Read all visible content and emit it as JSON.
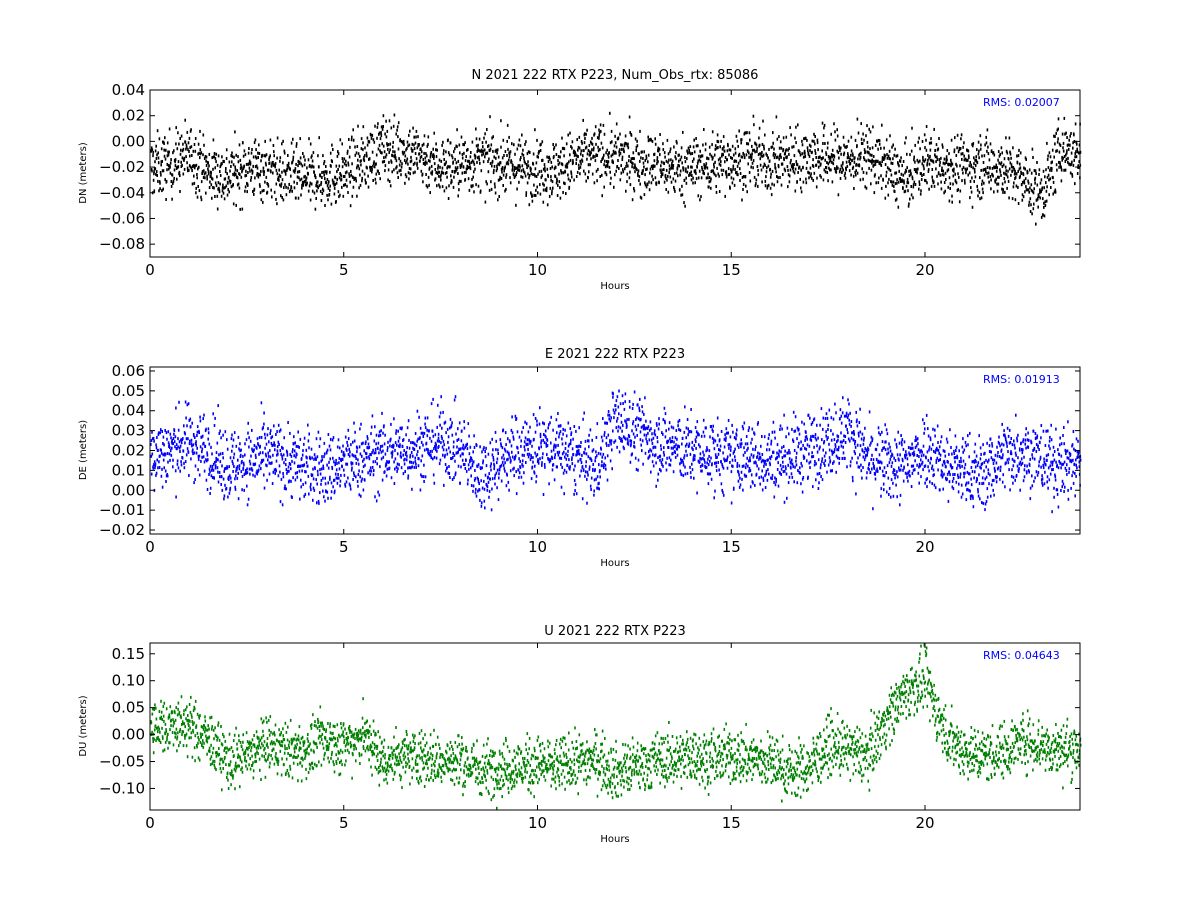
{
  "chart_data": [
    {
      "type": "scatter",
      "title": "N 2021 222 RTX  P223, Num_Obs_rtx: 85086",
      "xlabel": "Hours",
      "ylabel": "DN (meters)",
      "xlim": [
        0,
        24
      ],
      "ylim": [
        -0.09,
        0.04
      ],
      "xticks": [
        0,
        5,
        10,
        15,
        20
      ],
      "yticks": [
        -0.08,
        -0.06,
        -0.04,
        -0.02,
        0.0,
        0.02,
        0.04
      ],
      "xtick_labels": [
        "0",
        "5",
        "10",
        "15",
        "20"
      ],
      "ytick_labels": [
        "−0.08",
        "−0.06",
        "−0.04",
        "−0.02",
        "0.00",
        "0.02",
        "0.04"
      ],
      "annotation": "RMS:  0.02007",
      "color": "#000000",
      "annotation_color": "#0000ff",
      "grid": false,
      "trend": {
        "x": [
          0,
          0.5,
          1,
          1.5,
          2,
          2.5,
          3,
          3.5,
          4,
          4.5,
          5,
          5.5,
          6,
          6.5,
          7,
          7.5,
          8,
          8.5,
          9,
          9.5,
          10,
          10.5,
          11,
          11.5,
          12,
          12.5,
          13,
          13.5,
          14,
          14.5,
          15,
          15.5,
          16,
          16.5,
          17,
          17.5,
          18,
          18.5,
          19,
          19.5,
          20,
          20.5,
          21,
          21.5,
          22,
          22.5,
          23,
          23.5,
          24
        ],
        "y": [
          -0.02,
          -0.018,
          -0.01,
          -0.024,
          -0.027,
          -0.02,
          -0.022,
          -0.026,
          -0.028,
          -0.027,
          -0.025,
          -0.015,
          -0.005,
          -0.008,
          -0.012,
          -0.02,
          -0.018,
          -0.015,
          -0.017,
          -0.02,
          -0.02,
          -0.022,
          -0.015,
          -0.01,
          -0.013,
          -0.016,
          -0.018,
          -0.02,
          -0.02,
          -0.017,
          -0.015,
          -0.013,
          -0.016,
          -0.014,
          -0.012,
          -0.013,
          -0.015,
          -0.01,
          -0.02,
          -0.03,
          -0.015,
          -0.018,
          -0.02,
          -0.018,
          -0.02,
          -0.03,
          -0.04,
          -0.005,
          -0.012
        ]
      },
      "spread": 0.012
    },
    {
      "type": "scatter",
      "title": "E 2021 222 RTX  P223",
      "xlabel": "Hours",
      "ylabel": "DE (meters)",
      "xlim": [
        0,
        24
      ],
      "ylim": [
        -0.022,
        0.062
      ],
      "xticks": [
        0,
        5,
        10,
        15,
        20
      ],
      "yticks": [
        -0.02,
        -0.01,
        0.0,
        0.01,
        0.02,
        0.03,
        0.04,
        0.05,
        0.06
      ],
      "xtick_labels": [
        "0",
        "5",
        "10",
        "15",
        "20"
      ],
      "ytick_labels": [
        "−0.02",
        "−0.01",
        "0.00",
        "0.01",
        "0.02",
        "0.03",
        "0.04",
        "0.05",
        "0.06"
      ],
      "annotation": "RMS:  0.01913",
      "color": "#0000ff",
      "annotation_color": "#0000ff",
      "grid": false,
      "trend": {
        "x": [
          0,
          0.5,
          1,
          1.5,
          2,
          2.5,
          3,
          3.5,
          4,
          4.5,
          5,
          5.5,
          6,
          6.5,
          7,
          7.5,
          8,
          8.5,
          9,
          9.5,
          10,
          10.5,
          11,
          11.5,
          12,
          12.5,
          13,
          13.5,
          14,
          14.5,
          15,
          15.5,
          16,
          16.5,
          17,
          17.5,
          18,
          18.5,
          19,
          19.5,
          20,
          20.5,
          21,
          21.5,
          22,
          22.5,
          23,
          23.5,
          24
        ],
        "y": [
          0.018,
          0.02,
          0.025,
          0.02,
          0.012,
          0.015,
          0.017,
          0.015,
          0.012,
          0.01,
          0.013,
          0.016,
          0.018,
          0.02,
          0.022,
          0.025,
          0.02,
          0.008,
          0.015,
          0.02,
          0.022,
          0.02,
          0.016,
          0.012,
          0.035,
          0.03,
          0.025,
          0.022,
          0.02,
          0.018,
          0.016,
          0.017,
          0.016,
          0.018,
          0.02,
          0.025,
          0.03,
          0.015,
          0.013,
          0.012,
          0.022,
          0.013,
          0.01,
          0.008,
          0.018,
          0.02,
          0.015,
          0.012,
          0.016
        ]
      },
      "spread": 0.009
    },
    {
      "type": "scatter",
      "title": "U 2021 222 RTX  P223",
      "xlabel": "Hours",
      "ylabel": "DU (meters)",
      "xlim": [
        0,
        24
      ],
      "ylim": [
        -0.14,
        0.17
      ],
      "xticks": [
        0,
        5,
        10,
        15,
        20
      ],
      "yticks": [
        -0.1,
        -0.05,
        0.0,
        0.05,
        0.1,
        0.15
      ],
      "xtick_labels": [
        "0",
        "5",
        "10",
        "15",
        "20"
      ],
      "ytick_labels": [
        "−0.10",
        "−0.05",
        "0.00",
        "0.05",
        "0.10",
        "0.15"
      ],
      "annotation": "RMS:  0.04643",
      "color": "#008000",
      "annotation_color": "#0000ff",
      "grid": false,
      "trend": {
        "x": [
          0,
          0.5,
          1,
          1.5,
          2,
          2.5,
          3,
          3.5,
          4,
          4.5,
          5,
          5.5,
          6,
          6.5,
          7,
          7.5,
          8,
          8.5,
          9,
          9.5,
          10,
          10.5,
          11,
          11.5,
          12,
          12.5,
          13,
          13.5,
          14,
          14.5,
          15,
          15.5,
          16,
          16.5,
          17,
          17.5,
          18,
          18.5,
          19,
          19.5,
          20,
          20.5,
          21,
          21.5,
          22,
          22.5,
          23,
          23.5,
          24
        ],
        "y": [
          0.01,
          0.02,
          0.015,
          -0.01,
          -0.05,
          -0.04,
          -0.02,
          -0.03,
          -0.03,
          -0.01,
          -0.02,
          0.0,
          -0.05,
          -0.04,
          -0.04,
          -0.05,
          -0.05,
          -0.065,
          -0.06,
          -0.06,
          -0.055,
          -0.06,
          -0.05,
          -0.045,
          -0.07,
          -0.06,
          -0.05,
          -0.045,
          -0.04,
          -0.045,
          -0.04,
          -0.045,
          -0.05,
          -0.07,
          -0.06,
          -0.02,
          -0.03,
          -0.04,
          0.03,
          0.08,
          0.1,
          0.0,
          -0.03,
          -0.04,
          -0.03,
          -0.01,
          -0.02,
          -0.03,
          -0.02
        ]
      },
      "spread": 0.025
    }
  ]
}
